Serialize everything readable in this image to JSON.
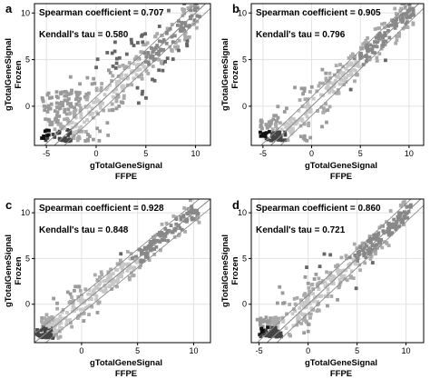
{
  "chart_data": [
    {
      "type": "scatter",
      "panel_label": "a",
      "stats": [
        "Spearman coefficient = 0.707",
        "Kendall's tau = 0.580"
      ],
      "xlabel": [
        "gTotalGeneSignal",
        "FFPE"
      ],
      "ylabel": [
        "gTotalGeneSignal",
        "Frozen"
      ],
      "xlim": [
        -6.2,
        11.5
      ],
      "ylim": [
        -4.2,
        11
      ],
      "xticks": [
        -5,
        0,
        5,
        10
      ],
      "yticks": [
        0,
        5,
        10
      ],
      "reference_lines": [
        "y = x",
        "y = x + 1",
        "y = x - 1"
      ]
    },
    {
      "type": "scatter",
      "panel_label": "b",
      "stats": [
        "Spearman coefficient = 0.905",
        "Kendall's tau = 0.796"
      ],
      "xlabel": [
        "gTotalGeneSignal",
        "FFPE"
      ],
      "ylabel": [
        "gTotalGeneSignal",
        "Frozen"
      ],
      "xlim": [
        -6.2,
        11.5
      ],
      "ylim": [
        -4.2,
        11
      ],
      "xticks": [
        -5,
        0,
        5,
        10
      ],
      "yticks": [
        0,
        5,
        10
      ],
      "reference_lines": [
        "y = x",
        "y = x + 1",
        "y = x - 1"
      ]
    },
    {
      "type": "scatter",
      "panel_label": "c",
      "stats": [
        "Spearman coefficient = 0.928",
        "Kendall's tau = 0.848"
      ],
      "xlabel": [
        "gTotalGeneSignal",
        "FFPE"
      ],
      "ylabel": [
        "gTotalGeneSignal",
        "Frozen"
      ],
      "xlim": [
        -4.2,
        11.5
      ],
      "ylim": [
        -4.2,
        11.5
      ],
      "xticks": [
        0,
        5,
        10
      ],
      "yticks": [
        0,
        5,
        10
      ],
      "reference_lines": [
        "y = x",
        "y = x + 1",
        "y = x - 1"
      ]
    },
    {
      "type": "scatter",
      "panel_label": "d",
      "stats": [
        "Spearman coefficient = 0.860",
        "Kendall's tau = 0.721"
      ],
      "xlabel": [
        "gTotalGeneSignal",
        "FFPE"
      ],
      "ylabel": [
        "gTotalGeneSignal",
        "Frozen"
      ],
      "xlim": [
        -5.8,
        11.8
      ],
      "ylim": [
        -4.2,
        11.5
      ],
      "xticks": [
        -5,
        0,
        5,
        10
      ],
      "yticks": [
        0,
        5,
        10
      ],
      "reference_lines": [
        "y = x",
        "y = x + 1",
        "y = x - 1"
      ]
    }
  ]
}
